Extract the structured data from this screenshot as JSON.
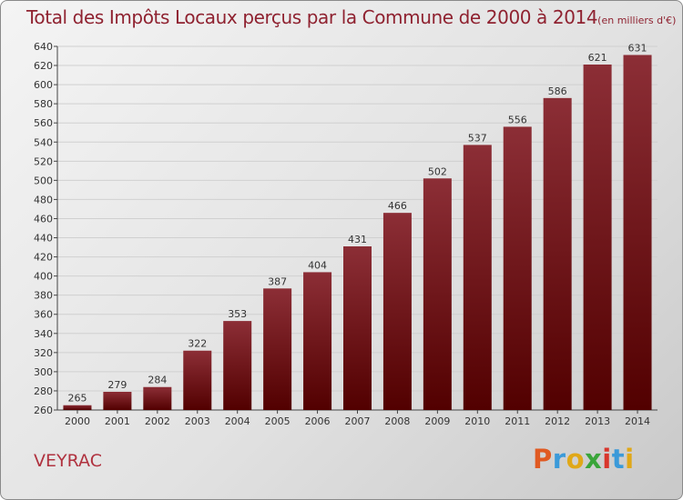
{
  "header": {
    "title": "Total des Impôts Locaux perçus par la Commune de 2000 à 2014",
    "unit": "(en milliers d'€)"
  },
  "commune": "VEYRAC",
  "logo": {
    "text": "Proxiti",
    "letters": [
      {
        "ch": "P",
        "color": "#e05a22"
      },
      {
        "ch": "r",
        "color": "#3b9ad9"
      },
      {
        "ch": "o",
        "color": "#e0a818"
      },
      {
        "ch": "x",
        "color": "#3aa53a"
      },
      {
        "ch": "i",
        "color": "#d8362c"
      },
      {
        "ch": "t",
        "color": "#3b9ad9"
      },
      {
        "ch": "i",
        "color": "#e0a818"
      }
    ]
  },
  "colors": {
    "bar_top": "#8c2e36",
    "bar_bottom": "#520000",
    "title": "#8f2230"
  },
  "chart_data": {
    "type": "bar",
    "categories": [
      "2000",
      "2001",
      "2002",
      "2003",
      "2004",
      "2005",
      "2006",
      "2007",
      "2008",
      "2009",
      "2010",
      "2011",
      "2012",
      "2013",
      "2014"
    ],
    "values": [
      265,
      279,
      284,
      322,
      353,
      387,
      404,
      431,
      466,
      502,
      537,
      556,
      586,
      621,
      631
    ],
    "title": "Total des Impôts Locaux perçus par la Commune de 2000 à 2014",
    "xlabel": "",
    "ylabel": "",
    "ylim": [
      260,
      640
    ],
    "yticks": [
      260,
      280,
      300,
      320,
      340,
      360,
      380,
      400,
      420,
      440,
      460,
      480,
      500,
      520,
      540,
      560,
      580,
      600,
      620,
      640
    ],
    "grid": true
  }
}
